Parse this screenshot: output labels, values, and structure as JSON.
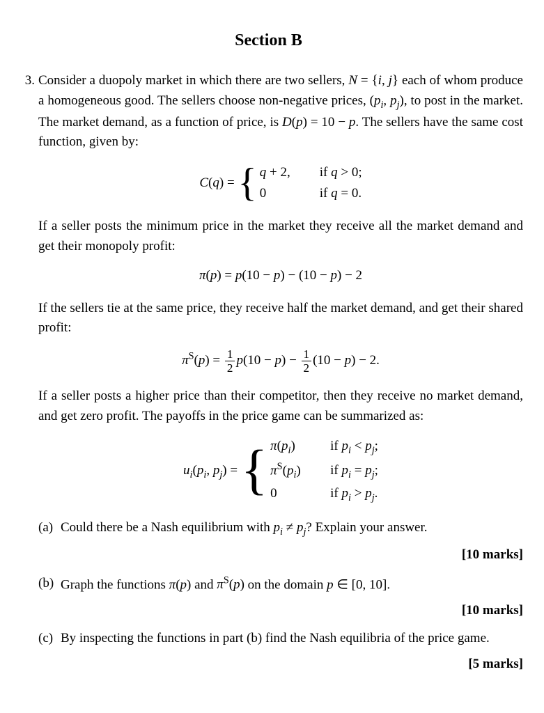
{
  "section_title": "Section B",
  "question_number": "3.",
  "intro1": "Consider a duopoly market in which there are two sellers, ",
  "intro1_math": "N = {i, j}",
  "intro1b": " each of whom produce a homogeneous good. The sellers choose non-negative prices, ",
  "intro1_math2": "(pᵢ, pⱼ)",
  "intro1c": ", to post in the market. The market demand, as a function of price, is ",
  "intro1_math3": "D(p) = 10 − p",
  "intro1d": ". The sellers have the same cost function, given by:",
  "cost_lhs": "C(q) = ",
  "cost_case1_l": "q + 2,",
  "cost_case1_r": "if q > 0;",
  "cost_case2_l": "0",
  "cost_case2_r": "if q = 0.",
  "para2": "If a seller posts the minimum price in the market they receive all the market demand and get their monopoly profit:",
  "eq_monopoly": "π(p) = p(10 − p) − (10 − p) − 2",
  "para3": "If the sellers tie at the same price, they receive half the market demand, and get their shared profit:",
  "eq_shared_lhs": "π",
  "eq_shared_sup": "S",
  "eq_shared_mid": "(p) = ",
  "frac_num": "1",
  "frac_den": "2",
  "eq_shared_a": "p(10 − p) − ",
  "eq_shared_b": "(10 − p) − 2.",
  "para4": "If a seller posts a higher price than their competitor, then they receive no market demand, and get zero profit. The payoffs in the price game can be summarized as:",
  "payoff_lhs": "uᵢ(pᵢ, pⱼ) = ",
  "payoff_c1_l": "π(pᵢ)",
  "payoff_c1_r": "if pᵢ < pⱼ;",
  "payoff_c2_l": "πˢ(pᵢ)",
  "payoff_c2_r": "if pᵢ = pⱼ;",
  "payoff_c3_l": "0",
  "payoff_c3_r": "if pᵢ > pⱼ.",
  "parts": {
    "a": {
      "label": "(a)",
      "text_a": "Could there be a Nash equilibrium with ",
      "math": "pᵢ ≠ pⱼ",
      "text_b": "? Explain your answer.",
      "marks": "[10 marks]"
    },
    "b": {
      "label": "(b)",
      "text_a": "Graph the functions ",
      "math1": "π(p)",
      "text_b": " and ",
      "math2": "πˢ(p)",
      "text_c": " on the domain ",
      "math3": "p ∈ [0, 10]",
      "text_d": ".",
      "marks": "[10 marks]"
    },
    "c": {
      "label": "(c)",
      "text": "By inspecting the functions in part (b) find the Nash equilibria of the price game.",
      "marks": "[5 marks]"
    }
  }
}
